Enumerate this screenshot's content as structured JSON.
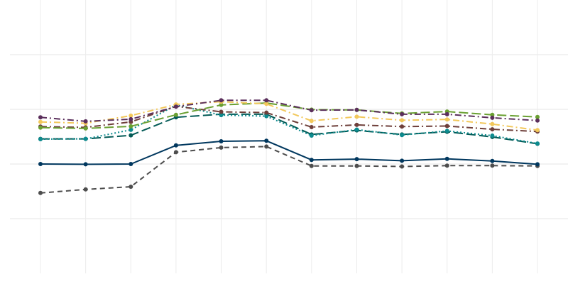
{
  "chart_data": {
    "type": "line",
    "x": [
      1,
      2,
      3,
      4,
      5,
      6,
      7,
      8,
      9,
      10,
      11,
      12
    ],
    "ylim": [
      0,
      1
    ],
    "grid": true,
    "legend": "none",
    "series": [
      {
        "color": "#4d4d4d",
        "dash": "dashed",
        "values": [
          0.294,
          0.307,
          0.317,
          0.443,
          0.46,
          0.464,
          0.393,
          0.393,
          0.391,
          0.394,
          0.394,
          0.393
        ]
      },
      {
        "color": "#00375e",
        "dash": "solid",
        "values": [
          0.4,
          0.399,
          0.4,
          0.468,
          0.483,
          0.485,
          0.415,
          0.418,
          0.412,
          0.419,
          0.411,
          0.399
        ]
      },
      {
        "color": "#035a56",
        "dash": "longdash",
        "values": [
          0.492,
          0.492,
          0.505,
          0.571,
          0.582,
          0.582,
          0.508,
          0.523,
          0.508,
          0.518,
          0.499,
          0.474
        ]
      },
      {
        "color": "#0d8b8f",
        "dash": "dotted",
        "values": [
          0.491,
          0.492,
          0.525,
          0.616,
          0.579,
          0.575,
          0.504,
          0.526,
          0.506,
          0.521,
          0.504,
          0.475
        ]
      },
      {
        "color": "#6e3f3a",
        "dash": "dotdash",
        "values": [
          0.537,
          0.534,
          0.554,
          0.611,
          0.591,
          0.588,
          0.535,
          0.543,
          0.537,
          0.539,
          0.527,
          0.519
        ]
      },
      {
        "color": "#6aa032",
        "dash": "longdash",
        "values": [
          0.533,
          0.53,
          0.538,
          0.58,
          0.616,
          0.623,
          0.599,
          0.598,
          0.585,
          0.592,
          0.58,
          0.572
        ]
      },
      {
        "color": "#f2c85b",
        "dash": "dotdash",
        "values": [
          0.554,
          0.549,
          0.577,
          0.618,
          0.628,
          0.62,
          0.558,
          0.573,
          0.56,
          0.563,
          0.546,
          0.524
        ]
      },
      {
        "color": "#5b2f5c",
        "dash": "dotdash",
        "values": [
          0.571,
          0.556,
          0.564,
          0.61,
          0.633,
          0.633,
          0.597,
          0.598,
          0.582,
          0.582,
          0.569,
          0.559
        ]
      }
    ]
  }
}
